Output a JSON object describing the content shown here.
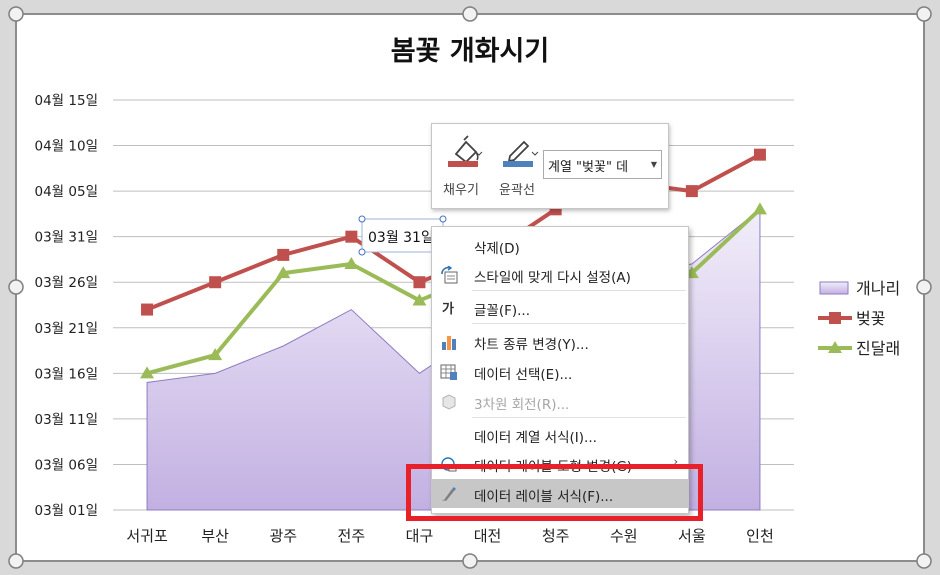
{
  "chart_data": {
    "type": "line",
    "title": "봄꽃 개화시기",
    "categories": [
      "서귀포",
      "부산",
      "광주",
      "전주",
      "대구",
      "대전",
      "청주",
      "수원",
      "서울",
      "인천"
    ],
    "y_tick_labels": [
      "04월 15일",
      "04월 10일",
      "04월 05일",
      "03월 31일",
      "03월 26일",
      "03월 21일",
      "03월 16일",
      "03월 11일",
      "03월 06일",
      "03월 01일"
    ],
    "ylim": [
      "03월 01일",
      "04월 15일"
    ],
    "grid": true,
    "legend_position": "right",
    "series": [
      {
        "name": "개나리",
        "type": "area",
        "color": "#b4a0d8",
        "values": [
          "03월 15일",
          "03월 16일",
          "03월 19일",
          "03월 23일",
          "03월 16일",
          "03월 21일",
          "03월 26일",
          "03월 27일",
          "03월 28일",
          "04월 03일"
        ]
      },
      {
        "name": "벚꽃",
        "type": "line",
        "color": "#c0504d",
        "values": [
          "03월 23일",
          "03월 26일",
          "03월 29일",
          "03월 31일",
          "03월 26일",
          "03월 29일",
          "04월 03일",
          "04월 06일",
          "04월 05일",
          "04월 09일"
        ]
      },
      {
        "name": "진달래",
        "type": "line",
        "color": "#9bbb59",
        "values": [
          "03월 16일",
          "03월 18일",
          "03월 27일",
          "03월 28일",
          "03월 24일",
          "03월 27일",
          "03월 31일",
          "03월 29일",
          "03월 27일",
          "04월 03일"
        ]
      }
    ],
    "annotations": [
      {
        "text": "03월 31일",
        "series": "벚꽃",
        "category": "전주"
      }
    ]
  },
  "toolbar": {
    "fill_label": "채우기",
    "fill_icon": "paint-bucket-icon",
    "outline_label": "윤곽선",
    "outline_icon": "pen-icon",
    "series_selector_value": "계열 \"벚꽃\" 데"
  },
  "context_menu": {
    "items": [
      {
        "label": "삭제(D)",
        "icon": "delete-icon",
        "enabled": true
      },
      {
        "label": "스타일에 맞게 다시 설정(A)",
        "icon": "reset-style-icon",
        "enabled": true
      },
      {
        "label": "글꼴(F)...",
        "icon": "font-icon",
        "enabled": true
      },
      {
        "label": "차트 종류 변경(Y)...",
        "icon": "chart-type-icon",
        "enabled": true
      },
      {
        "label": "데이터 선택(E)...",
        "icon": "select-data-icon",
        "enabled": true
      },
      {
        "label": "3차원 회전(R)...",
        "icon": "rotation-3d-icon",
        "enabled": false
      },
      {
        "label": "데이터 계열 서식(I)...",
        "icon": "",
        "enabled": true
      },
      {
        "label": "데이터 레이블 도형 변경(G)",
        "icon": "shape-change-icon",
        "enabled": true
      },
      {
        "label": "데이터 레이블 서식(F)...",
        "icon": "format-label-icon",
        "enabled": true,
        "highlighted": true
      }
    ]
  },
  "colors": {
    "highlight_box": "#e8202a",
    "menu_hover": "#c7c7c7"
  }
}
